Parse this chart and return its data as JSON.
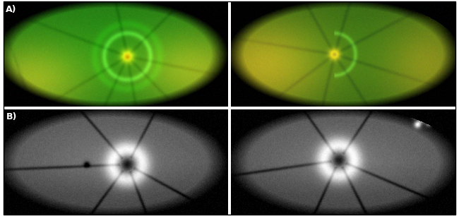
{
  "figure_width": 6.5,
  "figure_height": 3.06,
  "dpi": 100,
  "background_color": "#ffffff",
  "border_color": "#000000",
  "label_A": "A)",
  "label_B": "B)",
  "label_fontsize": 9,
  "label_color": "#ffffff",
  "separator_color": "#000000"
}
